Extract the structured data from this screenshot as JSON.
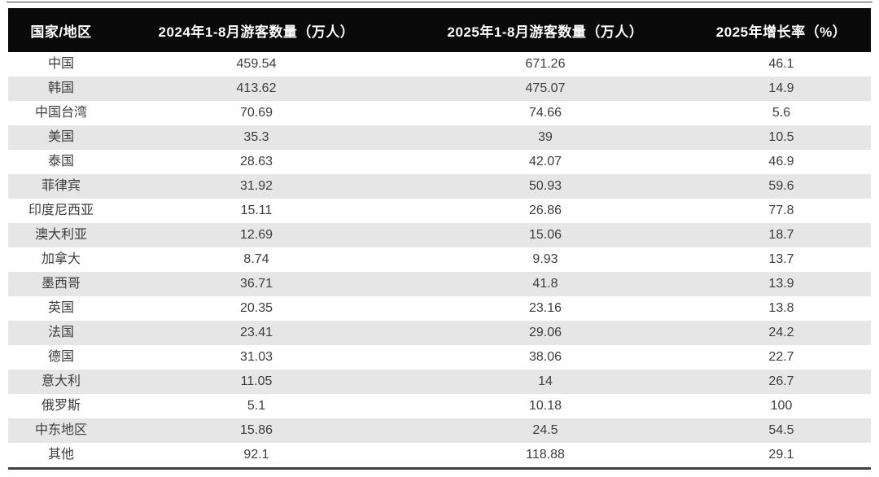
{
  "chart_data": {
    "type": "table",
    "title": "",
    "columns": [
      "国家/地区",
      "2024年1-8月游客数量（万人）",
      "2025年1-8月游客数量（万人）",
      "2025年增长率（%）"
    ],
    "rows": [
      [
        "中国",
        "459.54",
        "671.26",
        "46.1"
      ],
      [
        "韩国",
        "413.62",
        "475.07",
        "14.9"
      ],
      [
        "中国台湾",
        "70.69",
        "74.66",
        "5.6"
      ],
      [
        "美国",
        "35.3",
        "39",
        "10.5"
      ],
      [
        "泰国",
        "28.63",
        "42.07",
        "46.9"
      ],
      [
        "菲律宾",
        "31.92",
        "50.93",
        "59.6"
      ],
      [
        "印度尼西亚",
        "15.11",
        "26.86",
        "77.8"
      ],
      [
        "澳大利亚",
        "12.69",
        "15.06",
        "18.7"
      ],
      [
        "加拿大",
        "8.74",
        "9.93",
        "13.7"
      ],
      [
        "墨西哥",
        "36.71",
        "41.8",
        "13.9"
      ],
      [
        "英国",
        "20.35",
        "23.16",
        "13.8"
      ],
      [
        "法国",
        "23.41",
        "29.06",
        "24.2"
      ],
      [
        "德国",
        "31.03",
        "38.06",
        "22.7"
      ],
      [
        "意大利",
        "11.05",
        "14",
        "26.7"
      ],
      [
        "俄罗斯",
        "5.1",
        "10.18",
        "100"
      ],
      [
        "中东地区",
        "15.86",
        "24.5",
        "54.5"
      ],
      [
        "其他",
        "92.1",
        "118.88",
        "29.1"
      ]
    ],
    "layout": {
      "header_background": "#0a0a0a",
      "header_text_color": "#fefefe",
      "stripe_color": "#e6e6e6",
      "body_text_color": "#3d3d3d",
      "rule_color": "#3f3f3f",
      "striping": "even rows shaded"
    }
  }
}
